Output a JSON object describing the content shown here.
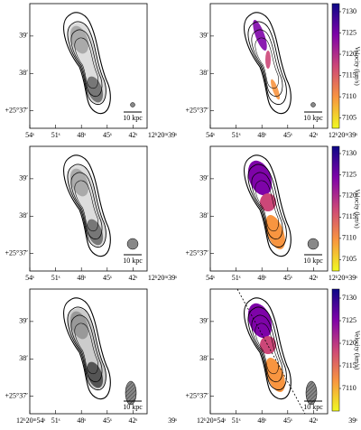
{
  "panels": [
    {
      "yticks": [
        "39′",
        "38′",
        "+25°37′"
      ],
      "xticks": [
        "54ˢ",
        "51ˢ",
        "48ˢ",
        "45ˢ",
        "42ˢ",
        "12ʰ20ᵐ39ˢ"
      ],
      "scale_bar": "10 kpc"
    },
    {
      "yticks": [
        "39′",
        "38′",
        "+25°37′"
      ],
      "xticks": [
        "54ˢ",
        "51ˢ",
        "48ˢ",
        "45ˢ",
        "42ˢ",
        "12ʰ20ᵐ39ˢ"
      ],
      "scale_bar": "10 kpc",
      "colorbar": {
        "label": "Velocity (km/s)",
        "range": [
          7102.6,
          7131.9
        ],
        "ticks": [
          7130,
          7125,
          7120,
          7115,
          7110,
          7105
        ]
      }
    },
    {
      "yticks": [
        "39′",
        "38′",
        "+25°37′"
      ],
      "xticks": [
        "54ˢ",
        "51ˢ",
        "48ˢ",
        "45ˢ",
        "42ˢ",
        "12ʰ20ᵐ39ˢ"
      ],
      "scale_bar": "10 kpc"
    },
    {
      "yticks": [
        "39′",
        "38′",
        "+25°37′"
      ],
      "xticks": [
        "54ˢ",
        "51ˢ",
        "48ˢ",
        "45ˢ",
        "42ˢ",
        "12ʰ20ᵐ39ˢ"
      ],
      "scale_bar": "10 kpc",
      "colorbar": {
        "label": "Velocity (km/s)",
        "range": [
          7102.3,
          7131.7
        ],
        "ticks": [
          7130,
          7125,
          7120,
          7115,
          7110,
          7105
        ]
      }
    },
    {
      "yticks": [
        "39′",
        "38′",
        "+25°37′"
      ],
      "xticks": [
        "12ʰ20ᵐ54ˢ",
        "51ˢ",
        "48ˢ",
        "45ˢ",
        "42ˢ",
        "39ˢ"
      ],
      "scale_bar": "10 kpc"
    },
    {
      "yticks": [
        "39′",
        "38′",
        "+25°37′"
      ],
      "xticks": [
        "12ʰ20ᵐ54ˢ",
        "51ˢ",
        "48ˢ",
        "45ˢ",
        "42ˢ",
        "39ˢ"
      ],
      "scale_bar": "10 kpc",
      "colorbar": {
        "label": "Velocity (km/s)",
        "range": [
          7105,
          7132
        ],
        "ticks": [
          7130,
          7125,
          7120,
          7115,
          7110
        ]
      }
    }
  ]
}
